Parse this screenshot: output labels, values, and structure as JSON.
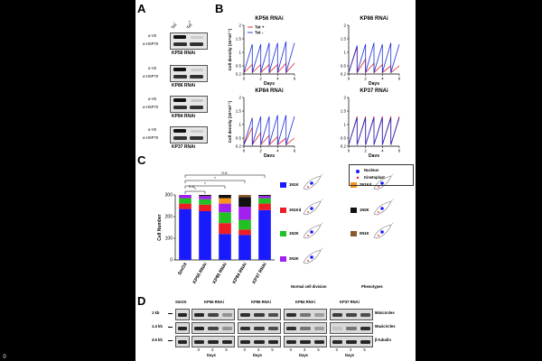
{
  "corner_label": "0",
  "panel_a": {
    "letter": "A",
    "col_headers": [
      "Tet",
      "Tet"
    ],
    "col_signs": [
      "-",
      "+"
    ],
    "blots": [
      {
        "rows": [
          "α-V5",
          "α-HSP70"
        ],
        "caption": "KP56 RNAi"
      },
      {
        "rows": [
          "α-V5",
          "α-HSP70"
        ],
        "caption": "KP86 RNAi"
      },
      {
        "rows": [
          "α-V5",
          "α-HSP70"
        ],
        "caption": "KP84 RNAi"
      },
      {
        "rows": [
          "α-V5",
          "α-HSP70"
        ],
        "caption": "KP37 RNAi"
      }
    ]
  },
  "panel_b": {
    "letter": "B",
    "ylabel": "Cell density (10⁷ml⁻¹)",
    "xlabel": "Days",
    "legend": [
      "Tet +",
      "Tet -"
    ],
    "colors": {
      "tet_plus": "#e02020",
      "tet_minus": "#1a2fd8"
    }
  },
  "panel_c": {
    "letter": "C",
    "ylabel": "Cell Number",
    "significance": [
      "n.s.",
      "*",
      "*",
      "*",
      "n.s."
    ],
    "legend": [
      {
        "label": "1N1K",
        "color": "#1a1aff"
      },
      {
        "label": "2N1Kd",
        "color": "#f7941d"
      },
      {
        "label": "1N1Kd",
        "color": "#ee1c24"
      },
      {
        "label": "1N0K",
        "color": "#111111"
      },
      {
        "label": "1N2K",
        "color": "#22c022"
      },
      {
        "label": "0N1K",
        "color": "#8b5a2b"
      },
      {
        "label": "2N2K",
        "color": "#a020f0"
      }
    ],
    "footer_left": "Normal cell division",
    "footer_right": "Phenotypes",
    "key": [
      {
        "label": "Nucleus",
        "color": "#1a1aff"
      },
      {
        "label": "Kinetoplast",
        "color": "#ee1c24"
      }
    ]
  },
  "panel_d": {
    "letter": "D",
    "groups": [
      "SmOX",
      "KP56 RNAi",
      "KP86 RNAi",
      "KP84 RNAi",
      "KP37 RNAi"
    ],
    "size_markers": [
      "1 kb",
      "1.4 kb",
      "3.6 kb"
    ],
    "row_labels": [
      "Minicircles",
      "Maxicircles",
      "β-tubulin"
    ],
    "day_ticks": [
      "0",
      "3",
      "5"
    ],
    "days_label": "Days"
  },
  "chart_data": [
    {
      "type": "line",
      "title": "KP56 RNAi",
      "xlabel": "Days",
      "ylabel": "Cell density (10⁷ml⁻¹)",
      "xlim": [
        0,
        6
      ],
      "ylim": [
        0.2,
        2
      ],
      "x_ticks": [
        0,
        2,
        4,
        6
      ],
      "y_ticks": [
        0.2,
        0.5,
        1,
        1.5,
        2
      ],
      "series": [
        {
          "name": "Tet +",
          "x": [
            0,
            1,
            1,
            2,
            2,
            3,
            3,
            4,
            4,
            5,
            5,
            6
          ],
          "y": [
            0.25,
            0.55,
            0.25,
            0.55,
            0.25,
            0.55,
            0.25,
            0.55,
            0.25,
            0.6,
            0.25,
            0.6
          ]
        },
        {
          "name": "Tet -",
          "x": [
            0,
            1,
            1,
            2,
            2,
            3,
            3,
            4,
            4,
            5,
            5,
            6
          ],
          "y": [
            0.25,
            1.3,
            0.25,
            1.3,
            0.25,
            1.35,
            0.25,
            1.35,
            0.25,
            1.4,
            0.25,
            1.35
          ]
        }
      ]
    },
    {
      "type": "line",
      "title": "KP86 RNAi",
      "xlabel": "Days",
      "xlim": [
        0,
        6
      ],
      "ylim": [
        0.2,
        2
      ],
      "x_ticks": [
        0,
        2,
        4,
        6
      ],
      "y_ticks": [
        0.2,
        0.5,
        1,
        1.5,
        2
      ],
      "series": [
        {
          "name": "Tet +",
          "x": [
            0,
            1,
            1,
            2,
            2,
            3,
            3,
            4,
            4,
            5,
            5,
            6
          ],
          "y": [
            0.25,
            1.2,
            0.25,
            0.75,
            0.25,
            0.6,
            0.25,
            0.55,
            0.25,
            0.5,
            0.25,
            0.5
          ]
        },
        {
          "name": "Tet -",
          "x": [
            0,
            1,
            1,
            2,
            2,
            3,
            3,
            4,
            4,
            5,
            5,
            6
          ],
          "y": [
            0.25,
            1.25,
            0.25,
            1.3,
            0.25,
            1.35,
            0.25,
            1.3,
            0.25,
            1.35,
            0.25,
            1.3
          ]
        }
      ]
    },
    {
      "type": "line",
      "title": "KP84 RNAi",
      "xlabel": "Days",
      "ylabel": "Cell density (10⁷ml⁻¹)",
      "xlim": [
        0,
        6
      ],
      "ylim": [
        0.2,
        2
      ],
      "x_ticks": [
        0,
        2,
        4,
        6
      ],
      "y_ticks": [
        0.2,
        0.5,
        1,
        1.5,
        2
      ],
      "series": [
        {
          "name": "Tet +",
          "x": [
            0,
            1,
            1,
            2,
            2,
            3,
            3,
            4,
            4,
            5,
            5,
            6
          ],
          "y": [
            0.25,
            0.9,
            0.25,
            0.7,
            0.25,
            0.6,
            0.25,
            0.55,
            0.25,
            0.5,
            0.25,
            0.5
          ]
        },
        {
          "name": "Tet -",
          "x": [
            0,
            1,
            1,
            2,
            2,
            3,
            3,
            4,
            4,
            5,
            5,
            6
          ],
          "y": [
            0.25,
            1.25,
            0.25,
            1.3,
            0.25,
            1.3,
            0.25,
            1.35,
            0.25,
            1.35,
            0.25,
            1.3
          ]
        }
      ]
    },
    {
      "type": "line",
      "title": "KP37 RNAi",
      "xlabel": "Days",
      "xlim": [
        0,
        6
      ],
      "ylim": [
        0.2,
        2
      ],
      "x_ticks": [
        0,
        2,
        4,
        6
      ],
      "y_ticks": [
        0.2,
        0.5,
        1,
        1.5,
        2
      ],
      "series": [
        {
          "name": "Tet +",
          "x": [
            0,
            1,
            1,
            2,
            2,
            3,
            3,
            4,
            4,
            5,
            5,
            6
          ],
          "y": [
            0.25,
            1.3,
            0.25,
            1.3,
            0.25,
            1.3,
            0.25,
            1.3,
            0.25,
            1.3,
            0.25,
            1.3
          ]
        },
        {
          "name": "Tet -",
          "x": [
            0,
            1,
            1,
            2,
            2,
            3,
            3,
            4,
            4,
            5,
            5,
            6
          ],
          "y": [
            0.25,
            1.25,
            0.25,
            1.25,
            0.25,
            1.25,
            0.25,
            1.25,
            0.25,
            1.25,
            0.25,
            1.25
          ]
        }
      ]
    },
    {
      "type": "bar",
      "stacked": true,
      "ylabel": "Cell Number",
      "ylim": [
        0,
        300
      ],
      "y_ticks": [
        0,
        100,
        200,
        300
      ],
      "categories": [
        "SmOX",
        "KP56 RNAi",
        "KP86 RNAi",
        "KP84 RNAi",
        "KP37 RNAi"
      ],
      "series": [
        {
          "name": "1N1K",
          "values": [
            235,
            225,
            120,
            115,
            230
          ]
        },
        {
          "name": "1N1Kd",
          "values": [
            25,
            30,
            50,
            25,
            30
          ]
        },
        {
          "name": "1N2K",
          "values": [
            25,
            25,
            50,
            45,
            25
          ]
        },
        {
          "name": "2N2K",
          "values": [
            15,
            15,
            40,
            60,
            10
          ]
        },
        {
          "name": "2N1Kd",
          "values": [
            0,
            0,
            25,
            0,
            0
          ]
        },
        {
          "name": "1N0K",
          "values": [
            0,
            5,
            15,
            45,
            5
          ]
        },
        {
          "name": "0N1K",
          "values": [
            0,
            0,
            0,
            10,
            0
          ]
        }
      ]
    }
  ]
}
